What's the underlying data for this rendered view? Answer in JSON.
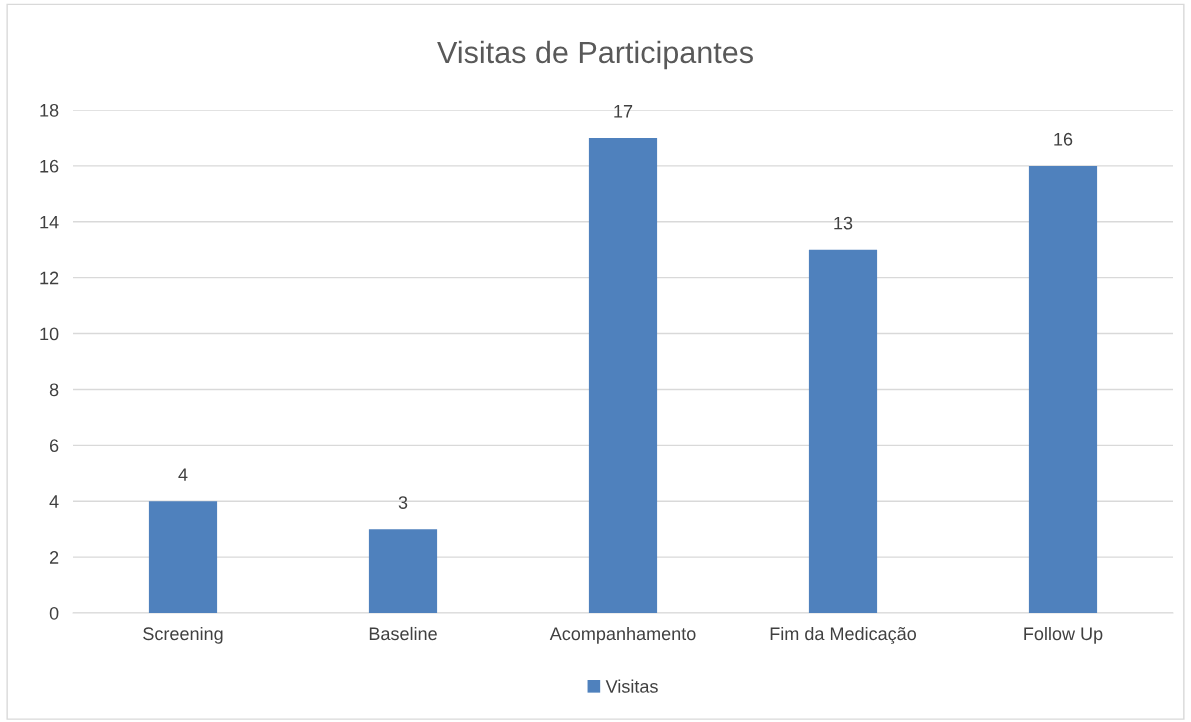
{
  "chart_data": {
    "type": "bar",
    "title": "Visitas de Participantes",
    "categories": [
      "Screening",
      "Baseline",
      "Acompanhamento",
      "Fim da Medicação",
      "Follow Up"
    ],
    "series": [
      {
        "name": "Visitas",
        "color": "#4f81bd",
        "values": [
          4,
          3,
          17,
          13,
          16
        ]
      }
    ],
    "ylim": [
      0,
      18
    ],
    "yticks": [
      0,
      2,
      4,
      6,
      8,
      10,
      12,
      14,
      16,
      18
    ],
    "grid": "y",
    "legend": "bottom",
    "data_labels": true
  }
}
